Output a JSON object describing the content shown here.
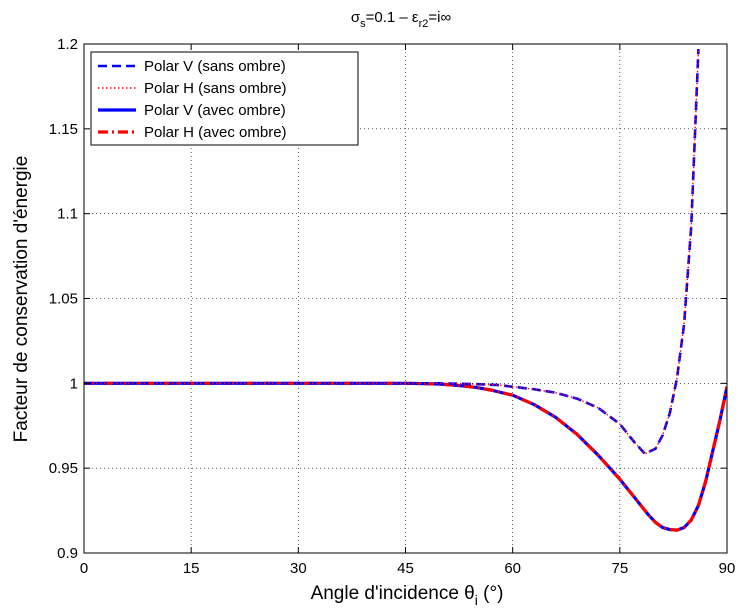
{
  "chart_data": {
    "type": "line",
    "title": {
      "sigma": "σ",
      "sigma_sub": "s",
      "middle": "=0.1 – ε",
      "eps_sub": "r2",
      "tail": "=i∞"
    },
    "xlabel": {
      "main": "Angle d'incidence θ",
      "sub": "i",
      "tail": " (°)"
    },
    "ylabel": "Facteur de conservation d'énergie",
    "xlim": [
      0,
      90
    ],
    "ylim": [
      0.9,
      1.2
    ],
    "xticks": [
      0,
      15,
      30,
      45,
      60,
      75,
      90
    ],
    "yticks": [
      0.9,
      0.95,
      1,
      1.05,
      1.1,
      1.15,
      1.2
    ],
    "ytick_labels": [
      "0.9",
      "0.95",
      "1",
      "1.05",
      "1.1",
      "1.15",
      "1.2"
    ],
    "grid": true,
    "legend_position": "top-left",
    "series": [
      {
        "name": "Polar V (sans ombre)",
        "color": "#0000ff",
        "dash": "dashed",
        "x": [
          0,
          10,
          20,
          30,
          40,
          45,
          50,
          55,
          58,
          60,
          63,
          66,
          69,
          72,
          75,
          77,
          78.5,
          80,
          81,
          82,
          83,
          84,
          85,
          86
        ],
        "y": [
          1.0,
          1.0,
          1.0,
          1.0,
          1.0,
          1.0,
          1.0,
          0.9995,
          0.999,
          0.998,
          0.9965,
          0.9945,
          0.991,
          0.9855,
          0.976,
          0.9655,
          0.9585,
          0.9615,
          0.9695,
          0.9825,
          1.003,
          1.035,
          1.093,
          1.197
        ]
      },
      {
        "name": "Polar H (sans ombre)",
        "color": "#ff0000",
        "dash": "dotted",
        "x": [
          0,
          10,
          20,
          30,
          40,
          45,
          50,
          55,
          58,
          60,
          63,
          66,
          69,
          72,
          75,
          77,
          78.5,
          80,
          81,
          82,
          83,
          84,
          85,
          86
        ],
        "y": [
          1.0,
          1.0,
          1.0,
          1.0,
          1.0,
          1.0,
          1.0,
          0.9995,
          0.999,
          0.998,
          0.9965,
          0.9945,
          0.991,
          0.9855,
          0.976,
          0.9655,
          0.9585,
          0.9615,
          0.9695,
          0.9825,
          1.003,
          1.035,
          1.093,
          1.197
        ]
      },
      {
        "name": "Polar V (avec ombre)",
        "color": "#0000ff",
        "dash": "solid",
        "x": [
          0,
          10,
          20,
          30,
          40,
          45,
          48,
          50,
          53,
          55,
          57,
          60,
          63,
          66,
          69,
          72,
          75,
          77,
          79,
          80,
          81,
          82,
          83,
          84,
          85,
          86,
          87,
          88,
          89,
          90
        ],
        "y": [
          1.0,
          1.0,
          1.0,
          1.0,
          1.0,
          1.0,
          0.9998,
          0.9995,
          0.9985,
          0.9975,
          0.996,
          0.993,
          0.9875,
          0.98,
          0.97,
          0.9575,
          0.9435,
          0.933,
          0.9225,
          0.918,
          0.915,
          0.9138,
          0.9135,
          0.915,
          0.9195,
          0.928,
          0.942,
          0.96,
          0.978,
          0.998
        ]
      },
      {
        "name": "Polar H (avec ombre)",
        "color": "#ff0000",
        "dash": "dashdot",
        "x": [
          0,
          10,
          20,
          30,
          40,
          45,
          48,
          50,
          53,
          55,
          57,
          60,
          63,
          66,
          69,
          72,
          75,
          77,
          79,
          80,
          81,
          82,
          83,
          84,
          85,
          86,
          87,
          88,
          89,
          90
        ],
        "y": [
          1.0,
          1.0,
          1.0,
          1.0,
          1.0,
          1.0,
          0.9998,
          0.9995,
          0.9985,
          0.9975,
          0.996,
          0.993,
          0.9875,
          0.98,
          0.97,
          0.9575,
          0.9435,
          0.933,
          0.9225,
          0.918,
          0.915,
          0.9138,
          0.9135,
          0.915,
          0.9195,
          0.928,
          0.942,
          0.96,
          0.978,
          0.998
        ]
      }
    ]
  }
}
